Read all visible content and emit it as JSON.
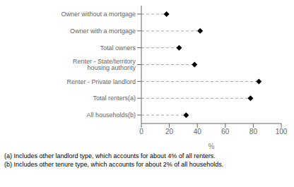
{
  "chart_data": {
    "type": "lollipop",
    "orientation": "horizontal",
    "categories": [
      "Owner without a mortgage",
      "Owner with a mortgage",
      "Total owners",
      "Renter - State/territory housing authority",
      "Renter - Private landlord",
      "Total renters(a)",
      "All households(b)"
    ],
    "values": [
      18,
      42,
      27,
      38,
      84,
      78,
      32
    ],
    "xlim": [
      0,
      100
    ],
    "xticks": [
      0,
      20,
      40,
      60,
      80,
      100
    ],
    "xlabel": "%",
    "marker": "diamond",
    "line_style": "dashed",
    "color": "#000000",
    "grid": false,
    "annotations": [
      "(a) Includes other landlord type, which accounts for about 4% of all renters.",
      "(b) Includes other tenure type, which accounts for about 2% of all households."
    ]
  }
}
